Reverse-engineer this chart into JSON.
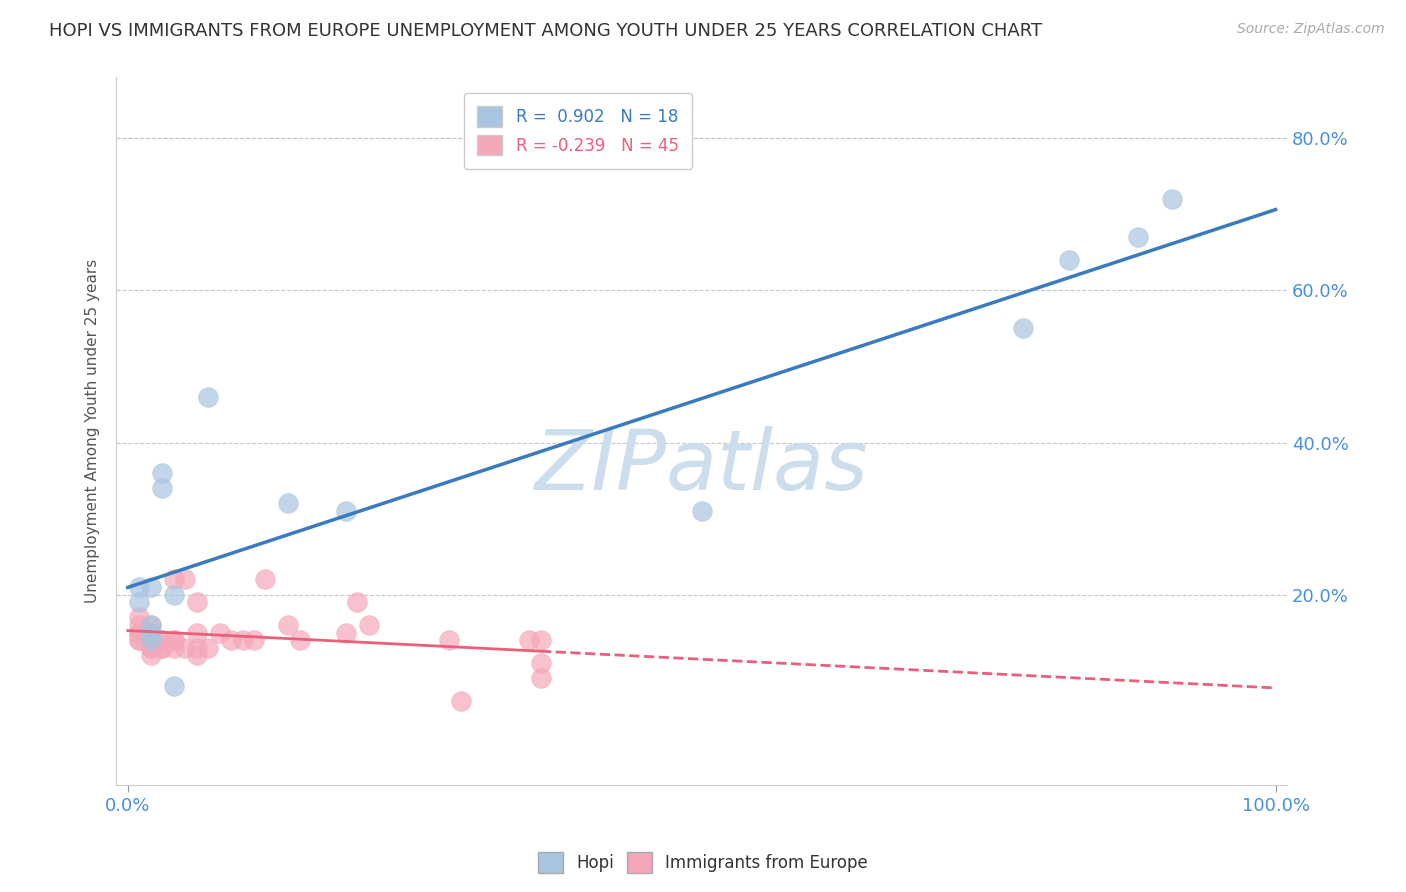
{
  "title": "HOPI VS IMMIGRANTS FROM EUROPE UNEMPLOYMENT AMONG YOUTH UNDER 25 YEARS CORRELATION CHART",
  "source": "Source: ZipAtlas.com",
  "ylabel": "Unemployment Among Youth under 25 years",
  "hopi_R": 0.902,
  "hopi_N": 18,
  "europe_R": -0.239,
  "europe_N": 45,
  "hopi_color": "#a8c4e0",
  "europe_color": "#f4a7b9",
  "hopi_line_color": "#3a7abf",
  "europe_line_color": "#e8607a",
  "watermark": "ZIPatlas",
  "watermark_color": "#ccdded",
  "hopi_x": [
    0.01,
    0.01,
    0.02,
    0.02,
    0.02,
    0.02,
    0.03,
    0.03,
    0.04,
    0.04,
    0.07,
    0.14,
    0.19,
    0.5,
    0.78,
    0.82,
    0.88,
    0.91
  ],
  "hopi_y": [
    0.19,
    0.21,
    0.14,
    0.15,
    0.16,
    0.21,
    0.36,
    0.34,
    0.08,
    0.2,
    0.46,
    0.32,
    0.31,
    0.31,
    0.55,
    0.64,
    0.67,
    0.72
  ],
  "europe_x": [
    0.01,
    0.01,
    0.01,
    0.01,
    0.01,
    0.01,
    0.01,
    0.02,
    0.02,
    0.02,
    0.02,
    0.02,
    0.02,
    0.02,
    0.03,
    0.03,
    0.03,
    0.03,
    0.04,
    0.04,
    0.04,
    0.04,
    0.05,
    0.05,
    0.06,
    0.06,
    0.06,
    0.06,
    0.07,
    0.08,
    0.09,
    0.1,
    0.11,
    0.12,
    0.14,
    0.15,
    0.19,
    0.2,
    0.21,
    0.28,
    0.29,
    0.35,
    0.36,
    0.36,
    0.36
  ],
  "europe_y": [
    0.14,
    0.14,
    0.15,
    0.15,
    0.15,
    0.16,
    0.17,
    0.12,
    0.13,
    0.13,
    0.14,
    0.15,
    0.15,
    0.16,
    0.13,
    0.13,
    0.14,
    0.14,
    0.13,
    0.14,
    0.14,
    0.22,
    0.13,
    0.22,
    0.12,
    0.13,
    0.15,
    0.19,
    0.13,
    0.15,
    0.14,
    0.14,
    0.14,
    0.22,
    0.16,
    0.14,
    0.15,
    0.19,
    0.16,
    0.14,
    0.06,
    0.14,
    0.11,
    0.14,
    0.09
  ],
  "background_color": "#ffffff",
  "grid_color": "#c8c8c8",
  "xlim": [
    -0.01,
    1.01
  ],
  "ylim": [
    -0.05,
    0.88
  ],
  "tick_color": "#4a90d9"
}
